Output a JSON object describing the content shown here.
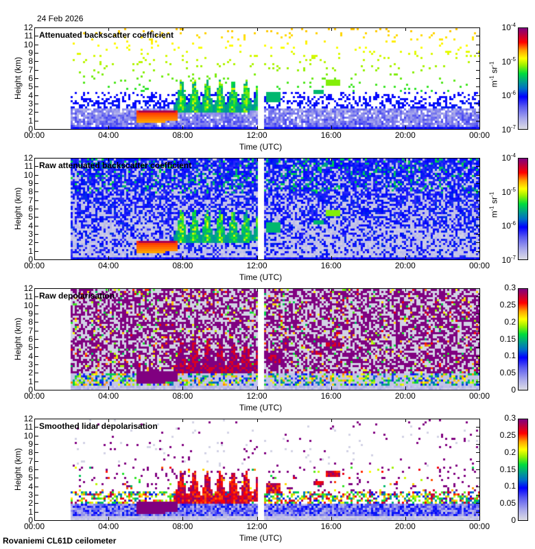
{
  "date": "24 Feb 2026",
  "footer": "Rovaniemi CL61D ceilometer",
  "chart_data": [
    {
      "type": "heatmap",
      "title": "Attenuated backscatter coefficient",
      "xlabel": "Time (UTC)",
      "ylabel": "Height (km)",
      "x_ticks": [
        "00:00",
        "04:00",
        "08:00",
        "12:00",
        "16:00",
        "20:00",
        "00:00"
      ],
      "y_ticks": [
        "0",
        "1",
        "2",
        "3",
        "4",
        "5",
        "6",
        "7",
        "8",
        "9",
        "10",
        "11",
        "12"
      ],
      "xlim_hours": [
        0,
        24
      ],
      "ylim_km": [
        0,
        12
      ],
      "colorbar": {
        "scale": "log",
        "range": [
          1e-07,
          0.0001
        ],
        "tick_bases": [
          "10",
          "10",
          "10",
          "10"
        ],
        "tick_exps": [
          "-7",
          "-6",
          "-5",
          "-4"
        ],
        "unit_base": "m",
        "unit_exp1": "-1",
        "unit_mid": " sr",
        "unit_exp2": "-1"
      },
      "data_start_hours": 1.93,
      "gap_hours": [
        12.0,
        12.38
      ],
      "features": [
        {
          "desc": "liquid cloud layer",
          "time_hours": [
            5.5,
            7.6
          ],
          "height_km": [
            1.0,
            2.3
          ],
          "value_approx": 3e-05
        },
        {
          "desc": "mixed-phase cloud plumes",
          "time_hours": [
            7.5,
            12.0
          ],
          "height_km": [
            2.0,
            6.0
          ],
          "value_approx": 5e-06
        },
        {
          "desc": "isolated cloud",
          "time_hours": [
            15.6,
            16.4
          ],
          "height_km": [
            4.5,
            6.0
          ],
          "value_approx": 5e-06
        },
        {
          "desc": "boundary layer aerosol",
          "time_hours": [
            1.93,
            24
          ],
          "height_km": [
            0,
            3
          ],
          "value_approx": 3e-07
        }
      ]
    },
    {
      "type": "heatmap",
      "title": "Raw attenuated backscatter coefficient",
      "xlabel": "Time (UTC)",
      "ylabel": "Height (km)",
      "x_ticks": [
        "00:00",
        "04:00",
        "08:00",
        "12:00",
        "16:00",
        "20:00",
        "00:00"
      ],
      "y_ticks": [
        "0",
        "1",
        "2",
        "3",
        "4",
        "5",
        "6",
        "7",
        "8",
        "9",
        "10",
        "11",
        "12"
      ],
      "xlim_hours": [
        0,
        24
      ],
      "ylim_km": [
        0,
        12
      ],
      "colorbar": {
        "scale": "log",
        "range": [
          1e-07,
          0.0001
        ],
        "tick_bases": [
          "10",
          "10",
          "10",
          "10"
        ],
        "tick_exps": [
          "-7",
          "-6",
          "-5",
          "-4"
        ],
        "unit_base": "m",
        "unit_exp1": "-1",
        "unit_mid": " sr",
        "unit_exp2": "-1"
      },
      "data_start_hours": 1.93,
      "gap_hours": [
        12.0,
        12.38
      ]
    },
    {
      "type": "heatmap",
      "title": "Raw depolarisation",
      "xlabel": "Time (UTC)",
      "ylabel": "Height (km)",
      "x_ticks": [
        "00:00",
        "04:00",
        "08:00",
        "12:00",
        "16:00",
        "20:00",
        "00:00"
      ],
      "y_ticks": [
        "0",
        "1",
        "2",
        "3",
        "4",
        "5",
        "6",
        "7",
        "8",
        "9",
        "10",
        "11",
        "12"
      ],
      "xlim_hours": [
        0,
        24
      ],
      "ylim_km": [
        0,
        12
      ],
      "colorbar": {
        "scale": "linear",
        "range": [
          0,
          0.3
        ],
        "ticks": [
          "0",
          "0.05",
          "0.1",
          "0.15",
          "0.2",
          "0.25",
          "0.3"
        ]
      },
      "data_start_hours": 1.93,
      "gap_hours": [
        12.0,
        12.38
      ]
    },
    {
      "type": "heatmap",
      "title": "Smoothed lidar depolarisation",
      "xlabel": "Time (UTC)",
      "ylabel": "Height (km)",
      "x_ticks": [
        "00:00",
        "04:00",
        "08:00",
        "12:00",
        "16:00",
        "20:00",
        "00:00"
      ],
      "y_ticks": [
        "0",
        "1",
        "2",
        "3",
        "4",
        "5",
        "6",
        "7",
        "8",
        "9",
        "10",
        "11",
        "12"
      ],
      "xlim_hours": [
        0,
        24
      ],
      "ylim_km": [
        0,
        12
      ],
      "colorbar": {
        "scale": "linear",
        "range": [
          0,
          0.3
        ],
        "ticks": [
          "0",
          "0.05",
          "0.1",
          "0.15",
          "0.2",
          "0.25",
          "0.3"
        ]
      },
      "data_start_hours": 1.93,
      "gap_hours": [
        12.0,
        12.38
      ]
    }
  ]
}
